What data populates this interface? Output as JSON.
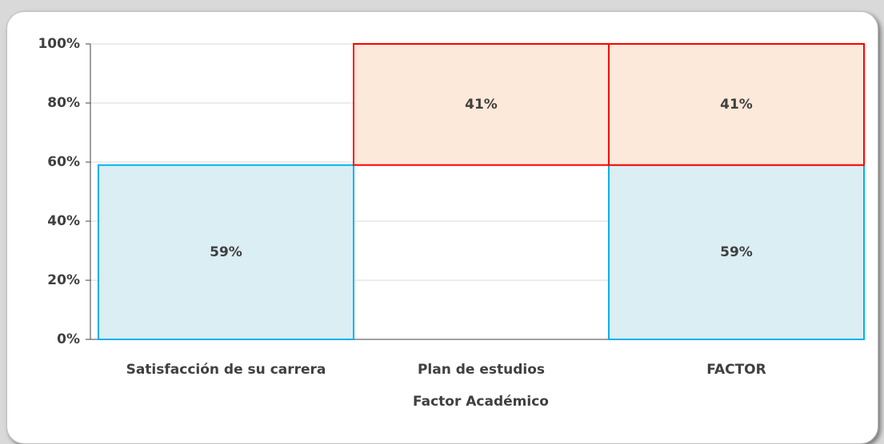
{
  "chart_data": {
    "type": "waterfall",
    "categories": [
      "Satisfacción de su carrera",
      "Plan de estudios",
      "FACTOR"
    ],
    "x_label": "Factor Académico",
    "series": [
      {
        "color": "#daeef3",
        "edge": "#00b0f0",
        "values": [
          59,
          null,
          59
        ],
        "value_labels": [
          "59%",
          null,
          "59%"
        ]
      },
      {
        "color": "#fde9d9",
        "edge": "#ff0000",
        "values": [
          null,
          41,
          41
        ],
        "value_labels": [
          null,
          "41%",
          "41%"
        ]
      }
    ],
    "ylim": [
      0,
      100
    ],
    "yticks": [
      {
        "value": 0,
        "label": "0%"
      },
      {
        "value": 20,
        "label": "20%"
      },
      {
        "value": 40,
        "label": "40%"
      },
      {
        "value": 60,
        "label": "60%"
      },
      {
        "value": 80,
        "label": "80%"
      },
      {
        "value": 100,
        "label": "100%"
      }
    ],
    "grid": true
  }
}
